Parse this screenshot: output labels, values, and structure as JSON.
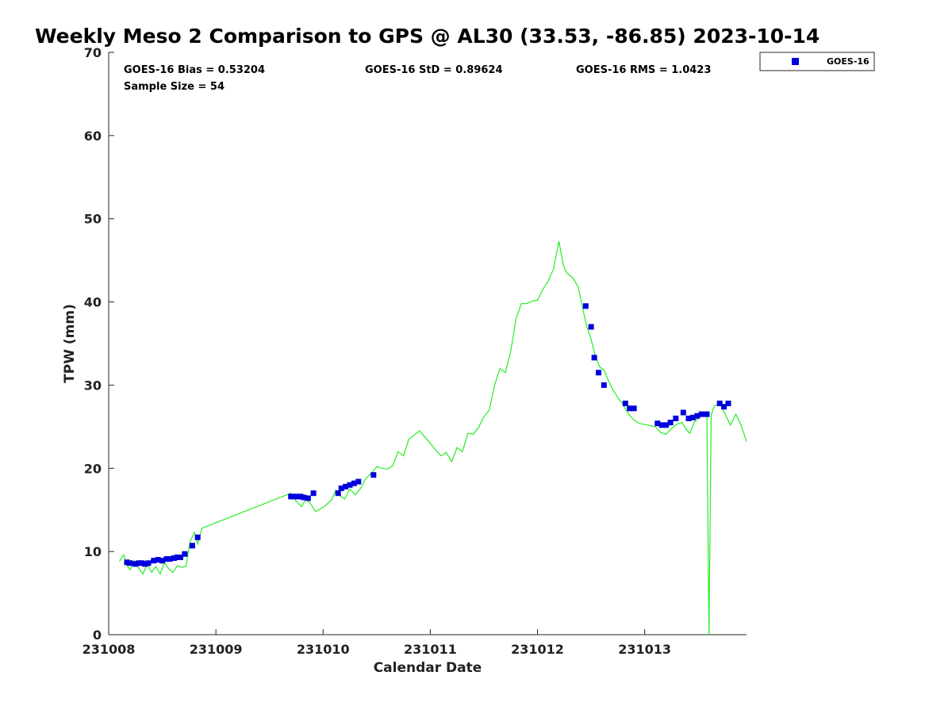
{
  "chart_data": {
    "type": "scatter",
    "title": "Weekly Meso 2 Comparison to GPS @ AL30 (33.53, -86.85) 2023-10-14",
    "xlabel": "Calendar Date",
    "ylabel": "TPW (mm)",
    "xlim": [
      231008.0,
      231013.95
    ],
    "ylim": [
      0,
      70
    ],
    "x_ticks": [
      231008,
      231009,
      231010,
      231011,
      231012,
      231013
    ],
    "x_tick_labels": [
      "231008",
      "231009",
      "231010",
      "231011",
      "231012",
      "231013"
    ],
    "y_ticks": [
      0,
      10,
      20,
      30,
      40,
      50,
      60,
      70
    ],
    "y_tick_labels": [
      "0",
      "10",
      "20",
      "30",
      "40",
      "50",
      "60",
      "70"
    ],
    "legend": {
      "position": "top-right-outside",
      "entries": [
        "GOES-16"
      ]
    },
    "stats": {
      "bias": "GOES-16 Bias = 0.53204",
      "std": "GOES-16 StD = 0.89624",
      "rms": "GOES-16 RMS = 1.0423",
      "sample": "Sample Size = 54"
    },
    "series": [
      {
        "name": "GOES-16",
        "kind": "scatter",
        "color": "#0000dd",
        "x": [
          231008.17,
          231008.2,
          231008.25,
          231008.28,
          231008.31,
          231008.34,
          231008.37,
          231008.42,
          231008.46,
          231008.5,
          231008.54,
          231008.57,
          231008.61,
          231008.64,
          231008.67,
          231008.71,
          231008.78,
          231008.83,
          231009.7,
          231009.73,
          231009.76,
          231009.79,
          231009.82,
          231009.86,
          231009.91,
          231010.14,
          231010.17,
          231010.21,
          231010.25,
          231010.29,
          231010.33,
          231010.47,
          231012.45,
          231012.5,
          231012.53,
          231012.57,
          231012.62,
          231012.82,
          231012.86,
          231012.9,
          231013.12,
          231013.16,
          231013.2,
          231013.24,
          231013.29,
          231013.36,
          231013.41,
          231013.45,
          231013.49,
          231013.53,
          231013.58,
          231013.7,
          231013.74,
          231013.78
        ],
        "y": [
          8.7,
          8.6,
          8.5,
          8.6,
          8.6,
          8.5,
          8.6,
          8.9,
          9.0,
          8.9,
          9.1,
          9.1,
          9.2,
          9.3,
          9.3,
          9.7,
          10.7,
          11.7,
          16.6,
          16.6,
          16.6,
          16.6,
          16.5,
          16.4,
          17.0,
          17.0,
          17.6,
          17.8,
          18.0,
          18.2,
          18.4,
          19.2,
          39.5,
          37.0,
          33.3,
          31.5,
          30.0,
          27.8,
          27.2,
          27.2,
          25.4,
          25.2,
          25.2,
          25.5,
          26.0,
          26.7,
          26.0,
          26.1,
          26.3,
          26.5,
          26.5,
          27.8,
          27.4,
          27.8
        ]
      },
      {
        "name": "",
        "kind": "line",
        "color": "#22ee22",
        "x": [
          231008.1,
          231008.14,
          231008.17,
          231008.2,
          231008.24,
          231008.28,
          231008.32,
          231008.36,
          231008.4,
          231008.44,
          231008.48,
          231008.52,
          231008.56,
          231008.6,
          231008.64,
          231008.68,
          231008.72,
          231008.76,
          231008.8,
          231008.83,
          231008.87,
          231009.7,
          231009.75,
          231009.8,
          231009.84,
          231009.88,
          231009.93,
          231010.0,
          231010.08,
          231010.12,
          231010.15,
          231010.2,
          231010.25,
          231010.3,
          231010.35,
          231010.4,
          231010.45,
          231010.5,
          231010.55,
          231010.6,
          231010.65,
          231010.7,
          231010.75,
          231010.8,
          231010.85,
          231010.9,
          231011.0,
          231011.05,
          231011.1,
          231011.15,
          231011.2,
          231011.25,
          231011.3,
          231011.35,
          231011.4,
          231011.45,
          231011.5,
          231011.55,
          231011.6,
          231011.65,
          231011.7,
          231011.75,
          231011.8,
          231011.85,
          231011.9,
          231011.95,
          231012.0,
          231012.05,
          231012.1,
          231012.15,
          231012.2,
          231012.24,
          231012.27,
          231012.3,
          231012.33,
          231012.38,
          231012.42,
          231012.46,
          231012.5,
          231012.54,
          231012.58,
          231012.62,
          231012.66,
          231012.7,
          231012.75,
          231012.8,
          231012.85,
          231012.9,
          231012.95,
          231013.1,
          231013.15,
          231013.2,
          231013.25,
          231013.3,
          231013.35,
          231013.38,
          231013.42,
          231013.46,
          231013.5,
          231013.54,
          231013.58,
          231013.6,
          231013.62,
          231013.65,
          231013.7,
          231013.75,
          231013.8,
          231013.85,
          231013.9,
          231013.95
        ],
        "y": [
          8.8,
          9.6,
          8.3,
          7.8,
          8.9,
          8.0,
          7.3,
          8.5,
          7.5,
          8.2,
          7.3,
          8.7,
          7.9,
          7.5,
          8.3,
          8.1,
          8.2,
          11.2,
          12.3,
          10.9,
          12.8,
          17.0,
          16.0,
          15.4,
          16.3,
          15.8,
          14.8,
          15.3,
          16.2,
          17.4,
          16.8,
          16.3,
          17.5,
          16.8,
          17.6,
          18.8,
          19.4,
          20.2,
          20.0,
          19.9,
          20.3,
          22.0,
          21.5,
          23.5,
          24.0,
          24.5,
          23.0,
          22.2,
          21.5,
          21.9,
          20.8,
          22.5,
          22.0,
          24.2,
          24.1,
          24.9,
          26.2,
          27.0,
          30.0,
          32.0,
          31.5,
          34.0,
          38.0,
          39.8,
          39.8,
          40.1,
          40.2,
          41.5,
          42.5,
          44.0,
          47.3,
          44.5,
          43.5,
          43.2,
          42.9,
          41.8,
          39.3,
          37.0,
          35.5,
          33.5,
          32.2,
          31.8,
          30.6,
          29.5,
          28.5,
          27.6,
          26.5,
          25.8,
          25.4,
          25.0,
          24.3,
          24.1,
          24.8,
          25.3,
          25.5,
          24.8,
          24.2,
          25.5,
          26.0,
          26.4,
          26.6,
          0.0,
          26.4,
          27.5,
          27.8,
          26.5,
          25.2,
          26.5,
          25.2,
          23.2
        ]
      }
    ]
  }
}
